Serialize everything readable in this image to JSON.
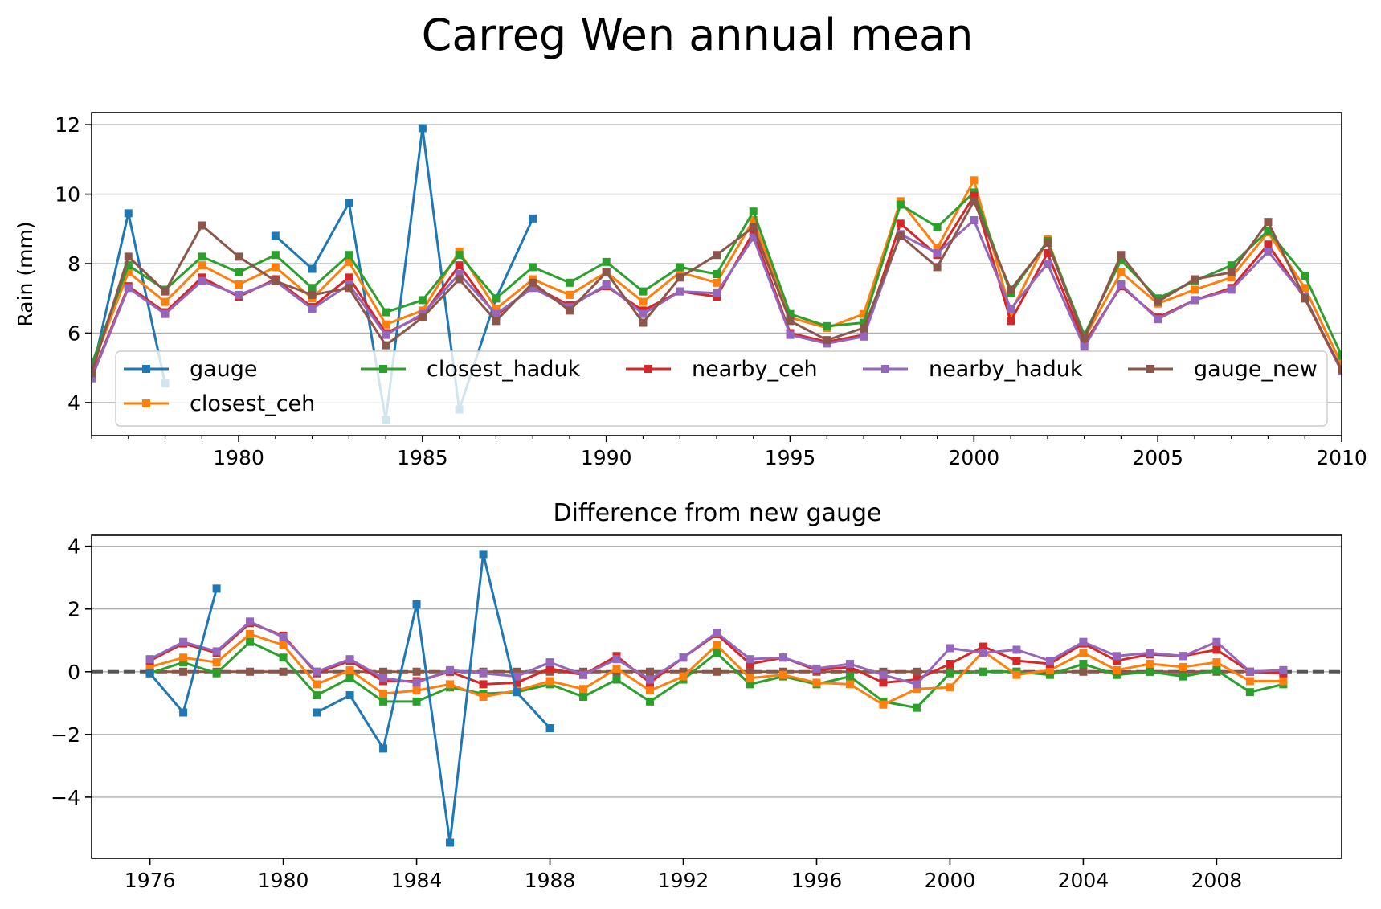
{
  "chart_data": {
    "title": "Carreg Wen annual mean",
    "palette": {
      "gauge": "#1f77b4",
      "closest_ceh": "#ff7f0e",
      "closest_haduk": "#2ca02c",
      "nearby_ceh": "#d62728",
      "nearby_haduk": "#9467bd",
      "gauge_new": "#8c564b",
      "zero_line": "#555555",
      "grid": "#b0b0b0"
    },
    "legend_order": [
      "gauge",
      "closest_ceh",
      "closest_haduk",
      "nearby_ceh",
      "nearby_haduk",
      "gauge_new"
    ],
    "legend_location": "lower-left, 5 columns",
    "panels": [
      {
        "type": "line",
        "title": "",
        "ylabel": "Rain (mm)",
        "xlabel": "",
        "xlim": [
          1976,
          2010
        ],
        "ylim": [
          3.05,
          12.35
        ],
        "xticks": [
          1980,
          1985,
          1990,
          1995,
          2000,
          2005,
          2010
        ],
        "xticklabels": [
          "1980",
          "1985",
          "1990",
          "1995",
          "2000",
          "2005",
          "2010"
        ],
        "minor_xticks_every_year": true,
        "yticks": [
          4,
          6,
          8,
          10,
          12
        ],
        "yticklabels": [
          "4",
          "6",
          "8",
          "10",
          "12"
        ],
        "grid": "horizontal",
        "legend": true,
        "x": [
          1976,
          1977,
          1978,
          1979,
          1980,
          1981,
          1982,
          1983,
          1984,
          1985,
          1986,
          1987,
          1988,
          1989,
          1990,
          1991,
          1992,
          1993,
          1994,
          1995,
          1996,
          1997,
          1998,
          1999,
          2000,
          2001,
          2002,
          2003,
          2004,
          2005,
          2006,
          2007,
          2008,
          2009,
          2010
        ],
        "series": [
          {
            "name": "gauge",
            "values": [
              4.8,
              9.45,
              4.55,
              null,
              null,
              8.8,
              7.85,
              9.75,
              3.5,
              11.9,
              3.8,
              7.0,
              9.3,
              null,
              null,
              null,
              null,
              null,
              null,
              null,
              null,
              null,
              null,
              null,
              null,
              null,
              null,
              null,
              null,
              null,
              null,
              null,
              null,
              null,
              null
            ]
          },
          {
            "name": "closest_ceh",
            "values": [
              5.0,
              7.75,
              6.9,
              7.95,
              7.4,
              7.9,
              7.0,
              8.05,
              6.25,
              6.65,
              8.35,
              6.7,
              7.55,
              7.1,
              7.75,
              6.9,
              7.75,
              7.45,
              9.25,
              6.45,
              6.15,
              6.55,
              9.8,
              8.45,
              10.4,
              6.6,
              8.7,
              5.85,
              7.75,
              6.85,
              7.25,
              7.6,
              8.9,
              7.3,
              5.1
            ]
          },
          {
            "name": "closest_haduk",
            "values": [
              5.1,
              7.95,
              7.25,
              8.2,
              7.75,
              8.25,
              7.3,
              8.25,
              6.6,
              6.95,
              8.25,
              7.0,
              7.9,
              7.45,
              8.05,
              7.2,
              7.9,
              7.7,
              9.5,
              6.55,
              6.2,
              6.3,
              9.7,
              9.05,
              10.05,
              7.15,
              8.65,
              5.95,
              8.1,
              7.0,
              7.5,
              7.95,
              8.95,
              7.65,
              5.35
            ]
          },
          {
            "name": "nearby_ceh",
            "values": [
              4.75,
              7.35,
              6.6,
              7.6,
              7.05,
              7.55,
              6.75,
              7.6,
              6.0,
              6.5,
              7.95,
              6.5,
              7.35,
              6.8,
              7.35,
              6.65,
              7.2,
              7.05,
              8.9,
              6.0,
              5.75,
              5.95,
              9.15,
              8.25,
              9.95,
              6.35,
              8.3,
              5.7,
              7.35,
              6.45,
              6.95,
              7.3,
              8.55,
              7.0,
              4.9
            ]
          },
          {
            "name": "nearby_haduk",
            "values": [
              4.7,
              7.3,
              6.55,
              7.5,
              7.1,
              7.5,
              6.7,
              7.4,
              5.95,
              6.55,
              7.7,
              6.55,
              7.3,
              6.75,
              7.4,
              6.55,
              7.2,
              7.15,
              8.75,
              5.95,
              5.7,
              5.9,
              8.85,
              8.3,
              9.25,
              6.7,
              8.0,
              5.6,
              7.4,
              6.4,
              6.95,
              7.25,
              8.35,
              7.05,
              4.9
            ]
          },
          {
            "name": "gauge_new",
            "values": [
              4.85,
              8.2,
              7.2,
              9.1,
              8.2,
              7.5,
              7.1,
              7.3,
              5.65,
              6.45,
              7.55,
              6.35,
              7.45,
              6.65,
              7.75,
              6.3,
              7.6,
              8.25,
              9.05,
              6.35,
              5.8,
              6.15,
              8.8,
              7.9,
              9.8,
              7.25,
              8.6,
              5.85,
              8.25,
              6.9,
              7.55,
              7.75,
              9.2,
              7.0,
              4.95
            ]
          }
        ]
      },
      {
        "type": "line",
        "title": "Difference from new gauge",
        "ylabel": "",
        "xlabel": "",
        "xlim": [
          1974.25,
          2011.75
        ],
        "ylim": [
          -5.95,
          4.35
        ],
        "xticks": [
          1976,
          1980,
          1984,
          1988,
          1992,
          1996,
          2000,
          2004,
          2008
        ],
        "xticklabels": [
          "1976",
          "1980",
          "1984",
          "1988",
          "1992",
          "1996",
          "2000",
          "2004",
          "2008"
        ],
        "yticks": [
          -4,
          -2,
          0,
          2,
          4
        ],
        "yticklabels": [
          "−4",
          "−2",
          "0",
          "2",
          "4"
        ],
        "grid": "horizontal",
        "zero_line": {
          "y": 0,
          "style": "dashed"
        },
        "x": [
          1976,
          1977,
          1978,
          1979,
          1980,
          1981,
          1982,
          1983,
          1984,
          1985,
          1986,
          1987,
          1988,
          1989,
          1990,
          1991,
          1992,
          1993,
          1994,
          1995,
          1996,
          1997,
          1998,
          1999,
          2000,
          2001,
          2002,
          2003,
          2004,
          2005,
          2006,
          2007,
          2008,
          2009,
          2010
        ],
        "series": [
          {
            "name": "gauge_new",
            "values": [
              0,
              0,
              0,
              0,
              0,
              0,
              0,
              0,
              0,
              0,
              0,
              0,
              0,
              0,
              0,
              0,
              0,
              0,
              0,
              0,
              0,
              0,
              0,
              0,
              0,
              0,
              0,
              0,
              0,
              0,
              0,
              0,
              0,
              0,
              0
            ]
          },
          {
            "name": "closest_haduk",
            "values": [
              -0.05,
              0.3,
              -0.05,
              0.95,
              0.45,
              -0.75,
              -0.2,
              -0.95,
              -0.95,
              -0.5,
              -0.7,
              -0.65,
              -0.4,
              -0.8,
              -0.25,
              -0.95,
              -0.25,
              0.6,
              -0.4,
              -0.15,
              -0.4,
              -0.15,
              -0.95,
              -1.15,
              -0.05,
              0.0,
              0.0,
              -0.1,
              0.25,
              -0.1,
              -0.0,
              -0.15,
              0.05,
              -0.65,
              -0.4
            ]
          },
          {
            "name": "closest_ceh",
            "values": [
              0.15,
              0.45,
              0.3,
              1.2,
              0.85,
              -0.4,
              0.05,
              -0.7,
              -0.6,
              -0.4,
              -0.8,
              -0.6,
              -0.3,
              -0.55,
              0.1,
              -0.6,
              -0.15,
              0.85,
              -0.2,
              -0.1,
              -0.35,
              -0.4,
              -1.05,
              -0.55,
              -0.5,
              0.65,
              -0.1,
              0.05,
              0.6,
              0.05,
              0.25,
              0.15,
              0.3,
              -0.3,
              -0.3
            ]
          },
          {
            "name": "nearby_ceh",
            "values": [
              0.35,
              0.9,
              0.6,
              1.55,
              1.15,
              -0.05,
              0.35,
              -0.3,
              -0.3,
              0.0,
              -0.4,
              -0.35,
              0.1,
              -0.1,
              0.5,
              -0.35,
              0.45,
              1.2,
              0.25,
              0.45,
              0.05,
              0.15,
              -0.35,
              -0.25,
              0.25,
              0.8,
              0.35,
              0.25,
              0.9,
              0.35,
              0.55,
              0.5,
              0.7,
              0.0,
              -0.05
            ]
          },
          {
            "name": "nearby_haduk",
            "values": [
              0.4,
              0.95,
              0.65,
              1.6,
              1.1,
              0.0,
              0.4,
              -0.2,
              -0.35,
              0.05,
              -0.05,
              -0.15,
              0.3,
              -0.1,
              0.4,
              -0.25,
              0.45,
              1.25,
              0.4,
              0.45,
              0.1,
              0.25,
              -0.1,
              -0.4,
              0.75,
              0.6,
              0.7,
              0.35,
              0.95,
              0.5,
              0.6,
              0.5,
              0.95,
              0.0,
              0.05
            ]
          },
          {
            "name": "gauge",
            "values": [
              -0.05,
              -1.3,
              2.65,
              null,
              null,
              -1.3,
              -0.75,
              -2.45,
              2.15,
              -5.45,
              3.75,
              -0.65,
              -1.8,
              null,
              null,
              null,
              null,
              null,
              null,
              null,
              null,
              null,
              null,
              null,
              null,
              null,
              null,
              null,
              null,
              null,
              null,
              null,
              null,
              null,
              null
            ]
          }
        ]
      }
    ]
  }
}
